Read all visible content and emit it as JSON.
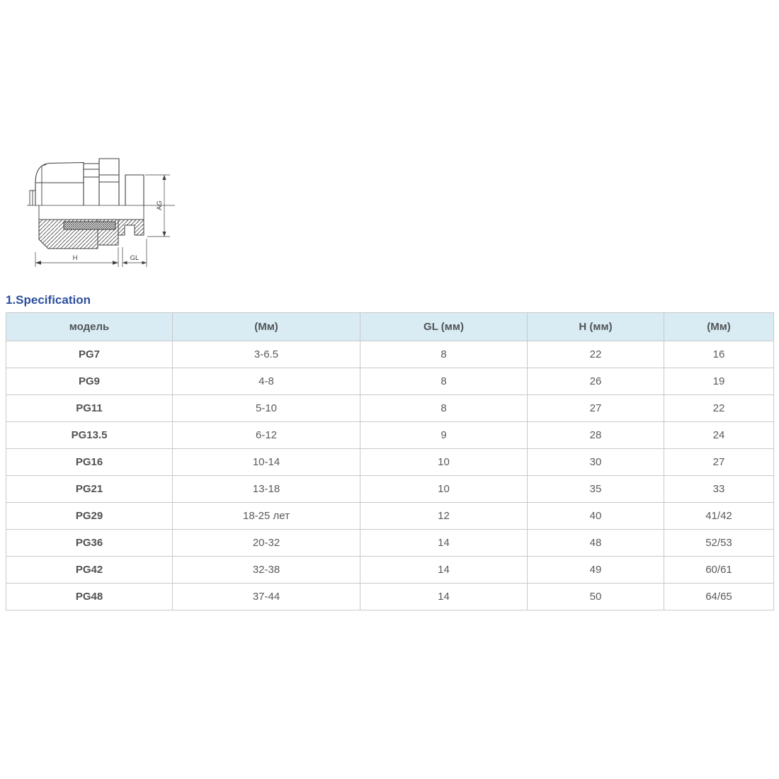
{
  "heading": {
    "text": "1.Specification",
    "color": "#2d4f9e"
  },
  "drawing": {
    "description": "cable-gland cross-section technical drawing",
    "line_color": "#3f3f3f",
    "labels": {
      "h": "H",
      "gl": "GL",
      "ag": "AG"
    }
  },
  "table": {
    "header_bg": "#d9ecf4",
    "border_color": "#c9c9c9",
    "columns": [
      "модель",
      "(Мм)",
      "GL (мм)",
      "H (мм)",
      "(Мм)"
    ],
    "rows": [
      [
        "PG7",
        "3-6.5",
        "8",
        "22",
        "16"
      ],
      [
        "PG9",
        "4-8",
        "8",
        "26",
        "19"
      ],
      [
        "PG11",
        "5-10",
        "8",
        "27",
        "22"
      ],
      [
        "PG13.5",
        "6-12",
        "9",
        "28",
        "24"
      ],
      [
        "PG16",
        "10-14",
        "10",
        "30",
        "27"
      ],
      [
        "PG21",
        "13-18",
        "10",
        "35",
        "33"
      ],
      [
        "PG29",
        "18-25 лет",
        "12",
        "40",
        "41/42"
      ],
      [
        "PG36",
        "20-32",
        "14",
        "48",
        "52/53"
      ],
      [
        "PG42",
        "32-38",
        "14",
        "49",
        "60/61"
      ],
      [
        "PG48",
        "37-44",
        "14",
        "50",
        "64/65"
      ]
    ]
  }
}
